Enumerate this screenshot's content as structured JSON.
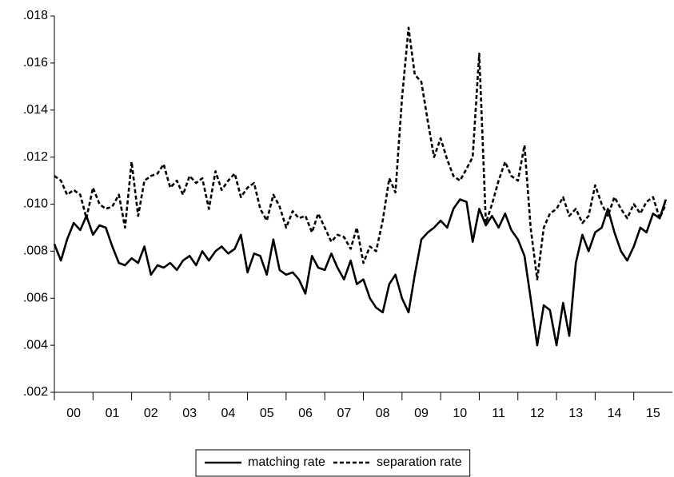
{
  "chart_data": {
    "type": "line",
    "x": [
      2000,
      2000.17,
      2000.33,
      2000.5,
      2000.67,
      2000.83,
      2001,
      2001.17,
      2001.33,
      2001.5,
      2001.67,
      2001.83,
      2002,
      2002.17,
      2002.33,
      2002.5,
      2002.67,
      2002.83,
      2003,
      2003.17,
      2003.33,
      2003.5,
      2003.67,
      2003.83,
      2004,
      2004.17,
      2004.33,
      2004.5,
      2004.67,
      2004.83,
      2005,
      2005.17,
      2005.33,
      2005.5,
      2005.67,
      2005.83,
      2006,
      2006.17,
      2006.33,
      2006.5,
      2006.67,
      2006.83,
      2007,
      2007.17,
      2007.33,
      2007.5,
      2007.67,
      2007.83,
      2008,
      2008.17,
      2008.33,
      2008.5,
      2008.67,
      2008.83,
      2009,
      2009.17,
      2009.33,
      2009.5,
      2009.67,
      2009.83,
      2010,
      2010.17,
      2010.33,
      2010.5,
      2010.67,
      2010.83,
      2011,
      2011.17,
      2011.33,
      2011.5,
      2011.67,
      2011.83,
      2012,
      2012.17,
      2012.33,
      2012.5,
      2012.67,
      2012.83,
      2013,
      2013.17,
      2013.33,
      2013.5,
      2013.67,
      2013.83,
      2014,
      2014.17,
      2014.33,
      2014.5,
      2014.67,
      2014.83,
      2015,
      2015.17,
      2015.33,
      2015.5,
      2015.67,
      2015.83
    ],
    "series": [
      {
        "name": "matching rate",
        "color": "#000000",
        "dash": false,
        "values": [
          0.0083,
          0.0076,
          0.0085,
          0.0092,
          0.0089,
          0.0095,
          0.0087,
          0.0091,
          0.009,
          0.0082,
          0.0075,
          0.0074,
          0.0077,
          0.0075,
          0.0082,
          0.007,
          0.0074,
          0.0073,
          0.0075,
          0.0072,
          0.0076,
          0.0078,
          0.0074,
          0.008,
          0.0076,
          0.008,
          0.0082,
          0.0079,
          0.0081,
          0.0087,
          0.0071,
          0.0079,
          0.0078,
          0.007,
          0.0085,
          0.0072,
          0.007,
          0.0071,
          0.0068,
          0.0062,
          0.0078,
          0.0073,
          0.0072,
          0.0079,
          0.0073,
          0.0068,
          0.0076,
          0.0066,
          0.0068,
          0.006,
          0.0056,
          0.0054,
          0.0066,
          0.007,
          0.006,
          0.0054,
          0.007,
          0.0085,
          0.0088,
          0.009,
          0.0093,
          0.009,
          0.0098,
          0.0102,
          0.0101,
          0.0084,
          0.0098,
          0.0091,
          0.0095,
          0.009,
          0.0096,
          0.0089,
          0.0085,
          0.0078,
          0.006,
          0.004,
          0.0057,
          0.0055,
          0.004,
          0.0058,
          0.0044,
          0.0075,
          0.0087,
          0.008,
          0.0088,
          0.009,
          0.0098,
          0.0088,
          0.008,
          0.0076,
          0.0082,
          0.009,
          0.0088,
          0.0096,
          0.0094,
          0.0102
        ]
      },
      {
        "name": "separation rate",
        "color": "#000000",
        "dash": true,
        "values": [
          0.0112,
          0.011,
          0.0104,
          0.0106,
          0.0104,
          0.0094,
          0.0107,
          0.01,
          0.0098,
          0.0099,
          0.0104,
          0.009,
          0.0118,
          0.0095,
          0.011,
          0.0112,
          0.0113,
          0.0117,
          0.0107,
          0.011,
          0.0104,
          0.0112,
          0.0109,
          0.0111,
          0.0098,
          0.0114,
          0.0106,
          0.011,
          0.0113,
          0.0103,
          0.0107,
          0.0109,
          0.0098,
          0.0093,
          0.0104,
          0.0099,
          0.009,
          0.0097,
          0.0094,
          0.0095,
          0.0088,
          0.0096,
          0.009,
          0.0084,
          0.0087,
          0.0086,
          0.0081,
          0.009,
          0.0075,
          0.0082,
          0.008,
          0.0093,
          0.0111,
          0.0105,
          0.0145,
          0.0175,
          0.0155,
          0.0152,
          0.0135,
          0.012,
          0.0128,
          0.0119,
          0.0112,
          0.011,
          0.0115,
          0.012,
          0.0164,
          0.0092,
          0.01,
          0.011,
          0.0118,
          0.0112,
          0.011,
          0.0125,
          0.009,
          0.0068,
          0.009,
          0.0096,
          0.0098,
          0.0103,
          0.0095,
          0.0098,
          0.0092,
          0.0095,
          0.0108,
          0.01,
          0.0095,
          0.0103,
          0.0098,
          0.0094,
          0.01,
          0.0096,
          0.0101,
          0.0103,
          0.0094,
          0.01
        ]
      }
    ],
    "xlim": [
      2000,
      2016
    ],
    "xticks": [
      {
        "value": 2000,
        "label": "00"
      },
      {
        "value": 2001,
        "label": "01"
      },
      {
        "value": 2002,
        "label": "02"
      },
      {
        "value": 2003,
        "label": "03"
      },
      {
        "value": 2004,
        "label": "04"
      },
      {
        "value": 2005,
        "label": "05"
      },
      {
        "value": 2006,
        "label": "06"
      },
      {
        "value": 2007,
        "label": "07"
      },
      {
        "value": 2008,
        "label": "08"
      },
      {
        "value": 2009,
        "label": "09"
      },
      {
        "value": 2010,
        "label": "10"
      },
      {
        "value": 2011,
        "label": "11"
      },
      {
        "value": 2012,
        "label": "12"
      },
      {
        "value": 2013,
        "label": "13"
      },
      {
        "value": 2014,
        "label": "14"
      },
      {
        "value": 2015,
        "label": "15"
      }
    ],
    "ylim": [
      0.002,
      0.018
    ],
    "yticks": [
      {
        "value": 0.002,
        "label": ".002"
      },
      {
        "value": 0.004,
        "label": ".004"
      },
      {
        "value": 0.006,
        "label": ".006"
      },
      {
        "value": 0.008,
        "label": ".008"
      },
      {
        "value": 0.01,
        "label": ".010"
      },
      {
        "value": 0.012,
        "label": ".012"
      },
      {
        "value": 0.014,
        "label": ".014"
      },
      {
        "value": 0.016,
        "label": ".016"
      },
      {
        "value": 0.018,
        "label": ".018"
      }
    ],
    "grid": false,
    "legend": "bottom"
  }
}
